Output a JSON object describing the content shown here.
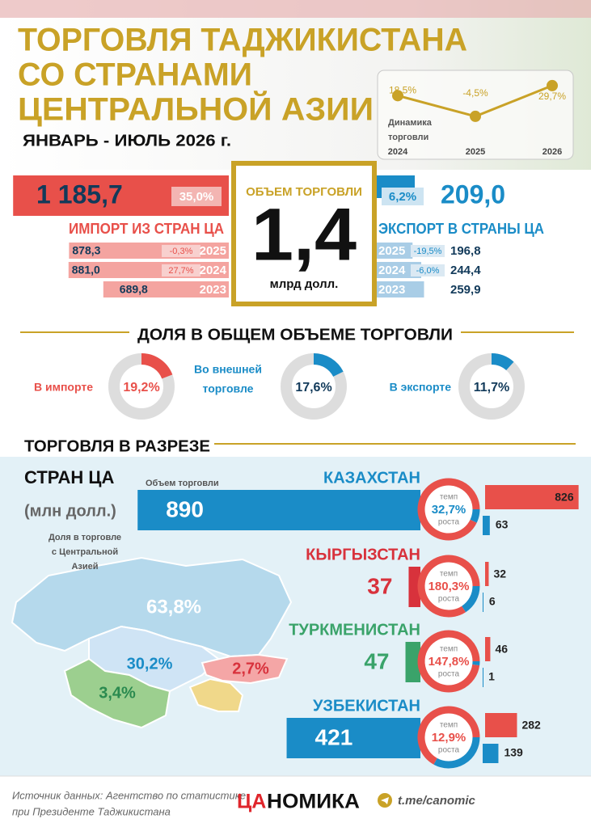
{
  "header": {
    "title_lines": [
      "ТОРГОВЛЯ ТАДЖИКИСТАНА",
      "СО СТРАНАМИ",
      "ЦЕНТРАЛЬНОЙ АЗИИ"
    ],
    "period": "ЯНВАРЬ - ИЮЛЬ 2026 г."
  },
  "dynamics": {
    "label_lines": [
      "Динамика",
      "торговли"
    ],
    "years": [
      "2024",
      "2025",
      "2026"
    ],
    "values": [
      18.5,
      -4.5,
      29.7
    ],
    "value_labels": [
      "18,5%",
      "-4,5%",
      "29,7%"
    ]
  },
  "total": {
    "title": "ОБЪЕМ ТОРГОВЛИ",
    "value": "1,4",
    "unit": "млрд долл."
  },
  "import": {
    "label": "ИМПОРТ ИЗ СТРАН ЦА",
    "value": 1185.7,
    "value_label": "1 185,7",
    "growth": "35,0%",
    "history": [
      {
        "year": "2025",
        "value": 878.3,
        "value_label": "878,3",
        "growth": "-0,3%"
      },
      {
        "year": "2024",
        "value": 881.0,
        "value_label": "881,0",
        "growth": "27,7%"
      },
      {
        "year": "2023",
        "value": 689.8,
        "value_label": "689,8"
      }
    ]
  },
  "export": {
    "label": "ЭКСПОРТ В СТРАНЫ ЦА",
    "value": 209.0,
    "value_label": "209,0",
    "growth": "6,2%",
    "history": [
      {
        "year": "2025",
        "value": 196.8,
        "value_label": "196,8",
        "growth": "-19,5%"
      },
      {
        "year": "2024",
        "value": 244.4,
        "value_label": "244,4",
        "growth": "-6,0%"
      },
      {
        "year": "2023",
        "value": 259.9,
        "value_label": "259,9"
      }
    ]
  },
  "share": {
    "title": "ДОЛЯ В ОБЩЕМ ОБЪЕМЕ ТОРГОВЛИ",
    "items": [
      {
        "label_lines": [
          "В импорте"
        ],
        "value": 19.2,
        "value_label": "19,2%"
      },
      {
        "label_lines": [
          "Во внешней",
          "торговле"
        ],
        "value": 17.6,
        "value_label": "17,6%"
      },
      {
        "label_lines": [
          "В экспорте"
        ],
        "value": 11.7,
        "value_label": "11,7%"
      }
    ]
  },
  "countries_section": {
    "title": "ТОРГОВЛЯ В РАЗРЕЗЕ",
    "subtitle": "СТРАН ЦА",
    "unit": "(млн долл.)",
    "volume_label": "Объем торговли",
    "map_label_lines": [
      "Доля в торговле",
      "с Центральной",
      "Азией"
    ],
    "growth_top": "темп",
    "growth_bottom": "роста",
    "countries": [
      {
        "name": "КАЗАХСТАН",
        "trade": 890,
        "import": 826,
        "export": 63,
        "growth": "32,7%",
        "map_share": "63,8%"
      },
      {
        "name": "КЫРГЫЗСТАН",
        "trade": 37,
        "import": 32,
        "export": 6,
        "growth": "180,3%",
        "map_share": "2,7%"
      },
      {
        "name": "ТУРКМЕНИСТАН",
        "trade": 47,
        "import": 46,
        "export": 1,
        "growth": "147,8%",
        "map_share": "3,4%"
      },
      {
        "name": "УЗБЕКИСТАН",
        "trade": 421,
        "import": 282,
        "export": 139,
        "growth": "12,9%",
        "map_share": "30,2%"
      }
    ]
  },
  "footer": {
    "source_lines": [
      "Источник данных: Агентство по статистике",
      "при Президенте Таджикистана"
    ],
    "logo_a": "ЦА",
    "logo_b": "НОМИКА",
    "link": "t.me/canomic"
  }
}
